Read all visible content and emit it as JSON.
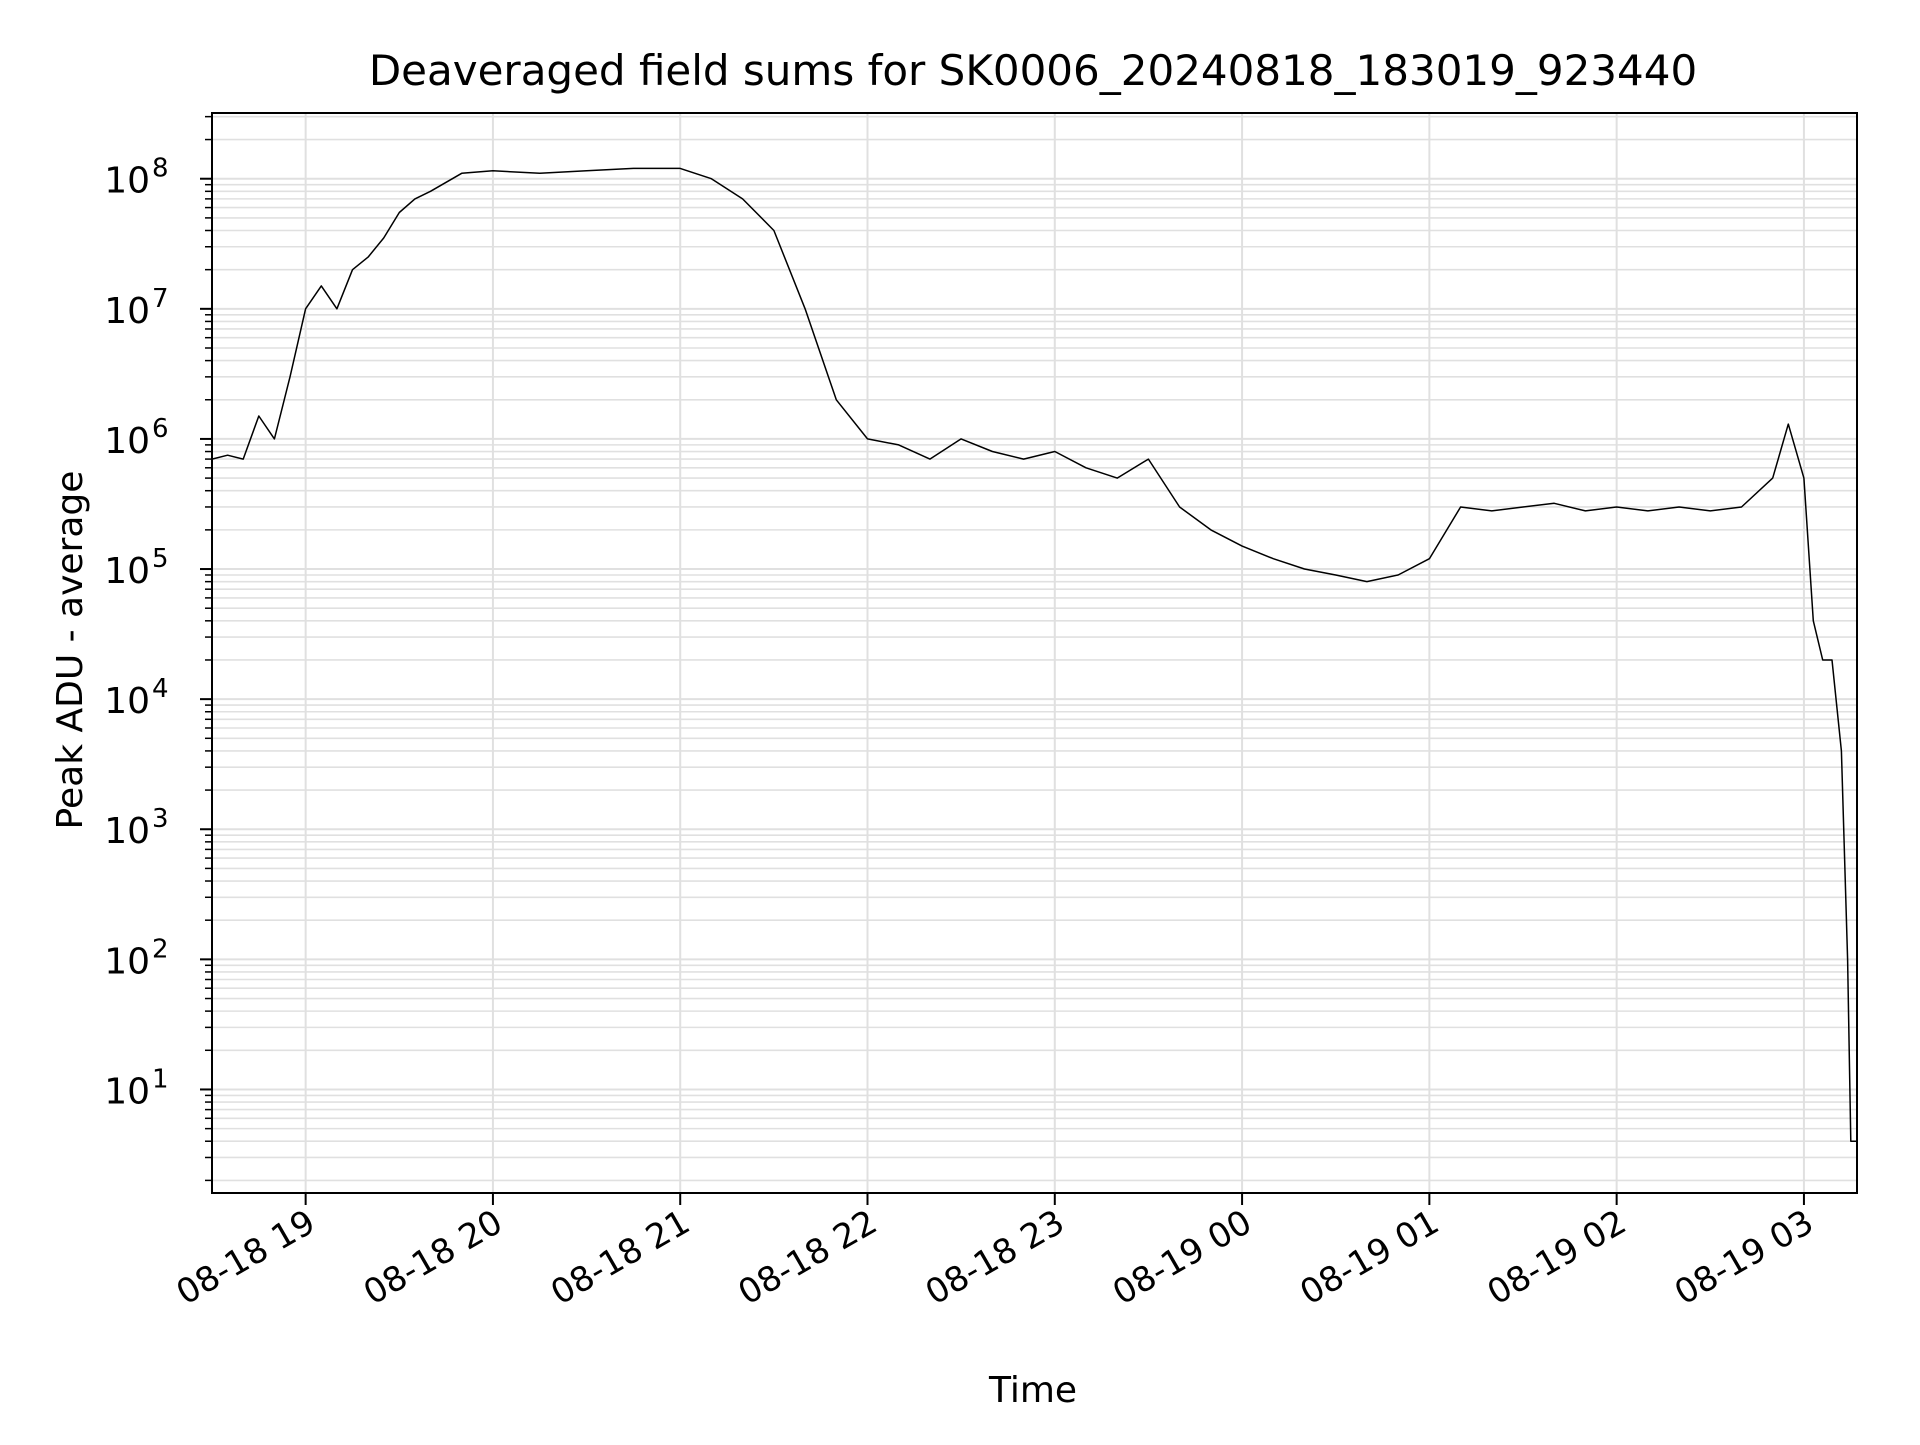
{
  "chart_data": {
    "type": "line",
    "title": "Deaveraged field sums for SK0006_20240818_183019_923440",
    "xlabel": "Time",
    "ylabel": "Peak ADU - average",
    "yscale": "log",
    "ylim": [
      1.6,
      320000000
    ],
    "xlim": [
      "08-18 18:30",
      "08-19 03:17"
    ],
    "x_ticks": [
      "08-18 19",
      "08-18 20",
      "08-18 21",
      "08-18 22",
      "08-18 23",
      "08-19 00",
      "08-19 01",
      "08-19 02",
      "08-19 03"
    ],
    "y_ticks": [
      {
        "base": "10",
        "exp": "1"
      },
      {
        "base": "10",
        "exp": "2"
      },
      {
        "base": "10",
        "exp": "3"
      },
      {
        "base": "10",
        "exp": "4"
      },
      {
        "base": "10",
        "exp": "5"
      },
      {
        "base": "10",
        "exp": "6"
      },
      {
        "base": "10",
        "exp": "7"
      },
      {
        "base": "10",
        "exp": "8"
      }
    ],
    "grid": true,
    "line_color": "#000000",
    "grid_color": "#e0e0e0",
    "series": [
      {
        "name": "",
        "points": [
          [
            "08-18 18:30",
            700000
          ],
          [
            "08-18 18:35",
            750000
          ],
          [
            "08-18 18:40",
            700000
          ],
          [
            "08-18 18:45",
            1500000
          ],
          [
            "08-18 18:50",
            1000000
          ],
          [
            "08-18 18:55",
            3000000
          ],
          [
            "08-18 19:00",
            10000000
          ],
          [
            "08-18 19:05",
            15000000
          ],
          [
            "08-18 19:10",
            10000000
          ],
          [
            "08-18 19:15",
            20000000
          ],
          [
            "08-18 19:20",
            25000000
          ],
          [
            "08-18 19:25",
            35000000
          ],
          [
            "08-18 19:30",
            55000000
          ],
          [
            "08-18 19:35",
            70000000
          ],
          [
            "08-18 19:40",
            80000000
          ],
          [
            "08-18 19:50",
            110000000
          ],
          [
            "08-18 20:00",
            115000000
          ],
          [
            "08-18 20:15",
            110000000
          ],
          [
            "08-18 20:30",
            115000000
          ],
          [
            "08-18 20:45",
            120000000
          ],
          [
            "08-18 21:00",
            120000000
          ],
          [
            "08-18 21:10",
            100000000
          ],
          [
            "08-18 21:20",
            70000000
          ],
          [
            "08-18 21:30",
            40000000
          ],
          [
            "08-18 21:40",
            10000000
          ],
          [
            "08-18 21:50",
            2000000
          ],
          [
            "08-18 22:00",
            1000000
          ],
          [
            "08-18 22:10",
            900000
          ],
          [
            "08-18 22:20",
            700000
          ],
          [
            "08-18 22:30",
            1000000
          ],
          [
            "08-18 22:40",
            800000
          ],
          [
            "08-18 22:50",
            700000
          ],
          [
            "08-18 23:00",
            800000
          ],
          [
            "08-18 23:10",
            600000
          ],
          [
            "08-18 23:20",
            500000
          ],
          [
            "08-18 23:30",
            700000
          ],
          [
            "08-18 23:40",
            300000
          ],
          [
            "08-18 23:50",
            200000
          ],
          [
            "08-19 00:00",
            150000
          ],
          [
            "08-19 00:10",
            120000
          ],
          [
            "08-19 00:20",
            100000
          ],
          [
            "08-19 00:30",
            90000
          ],
          [
            "08-19 00:40",
            80000
          ],
          [
            "08-19 00:50",
            90000
          ],
          [
            "08-19 01:00",
            120000
          ],
          [
            "08-19 01:10",
            300000
          ],
          [
            "08-19 01:20",
            280000
          ],
          [
            "08-19 01:30",
            300000
          ],
          [
            "08-19 01:40",
            320000
          ],
          [
            "08-19 01:50",
            280000
          ],
          [
            "08-19 02:00",
            300000
          ],
          [
            "08-19 02:10",
            280000
          ],
          [
            "08-19 02:20",
            300000
          ],
          [
            "08-19 02:30",
            280000
          ],
          [
            "08-19 02:40",
            300000
          ],
          [
            "08-19 02:50",
            500000
          ],
          [
            "08-19 02:55",
            1300000
          ],
          [
            "08-19 03:00",
            500000
          ],
          [
            "08-19 03:03",
            40000
          ],
          [
            "08-19 03:06",
            20000
          ],
          [
            "08-19 03:09",
            20000
          ],
          [
            "08-19 03:12",
            4000
          ],
          [
            "08-19 03:14",
            100
          ],
          [
            "08-19 03:15",
            4
          ],
          [
            "08-19 03:17",
            4
          ]
        ]
      }
    ]
  }
}
